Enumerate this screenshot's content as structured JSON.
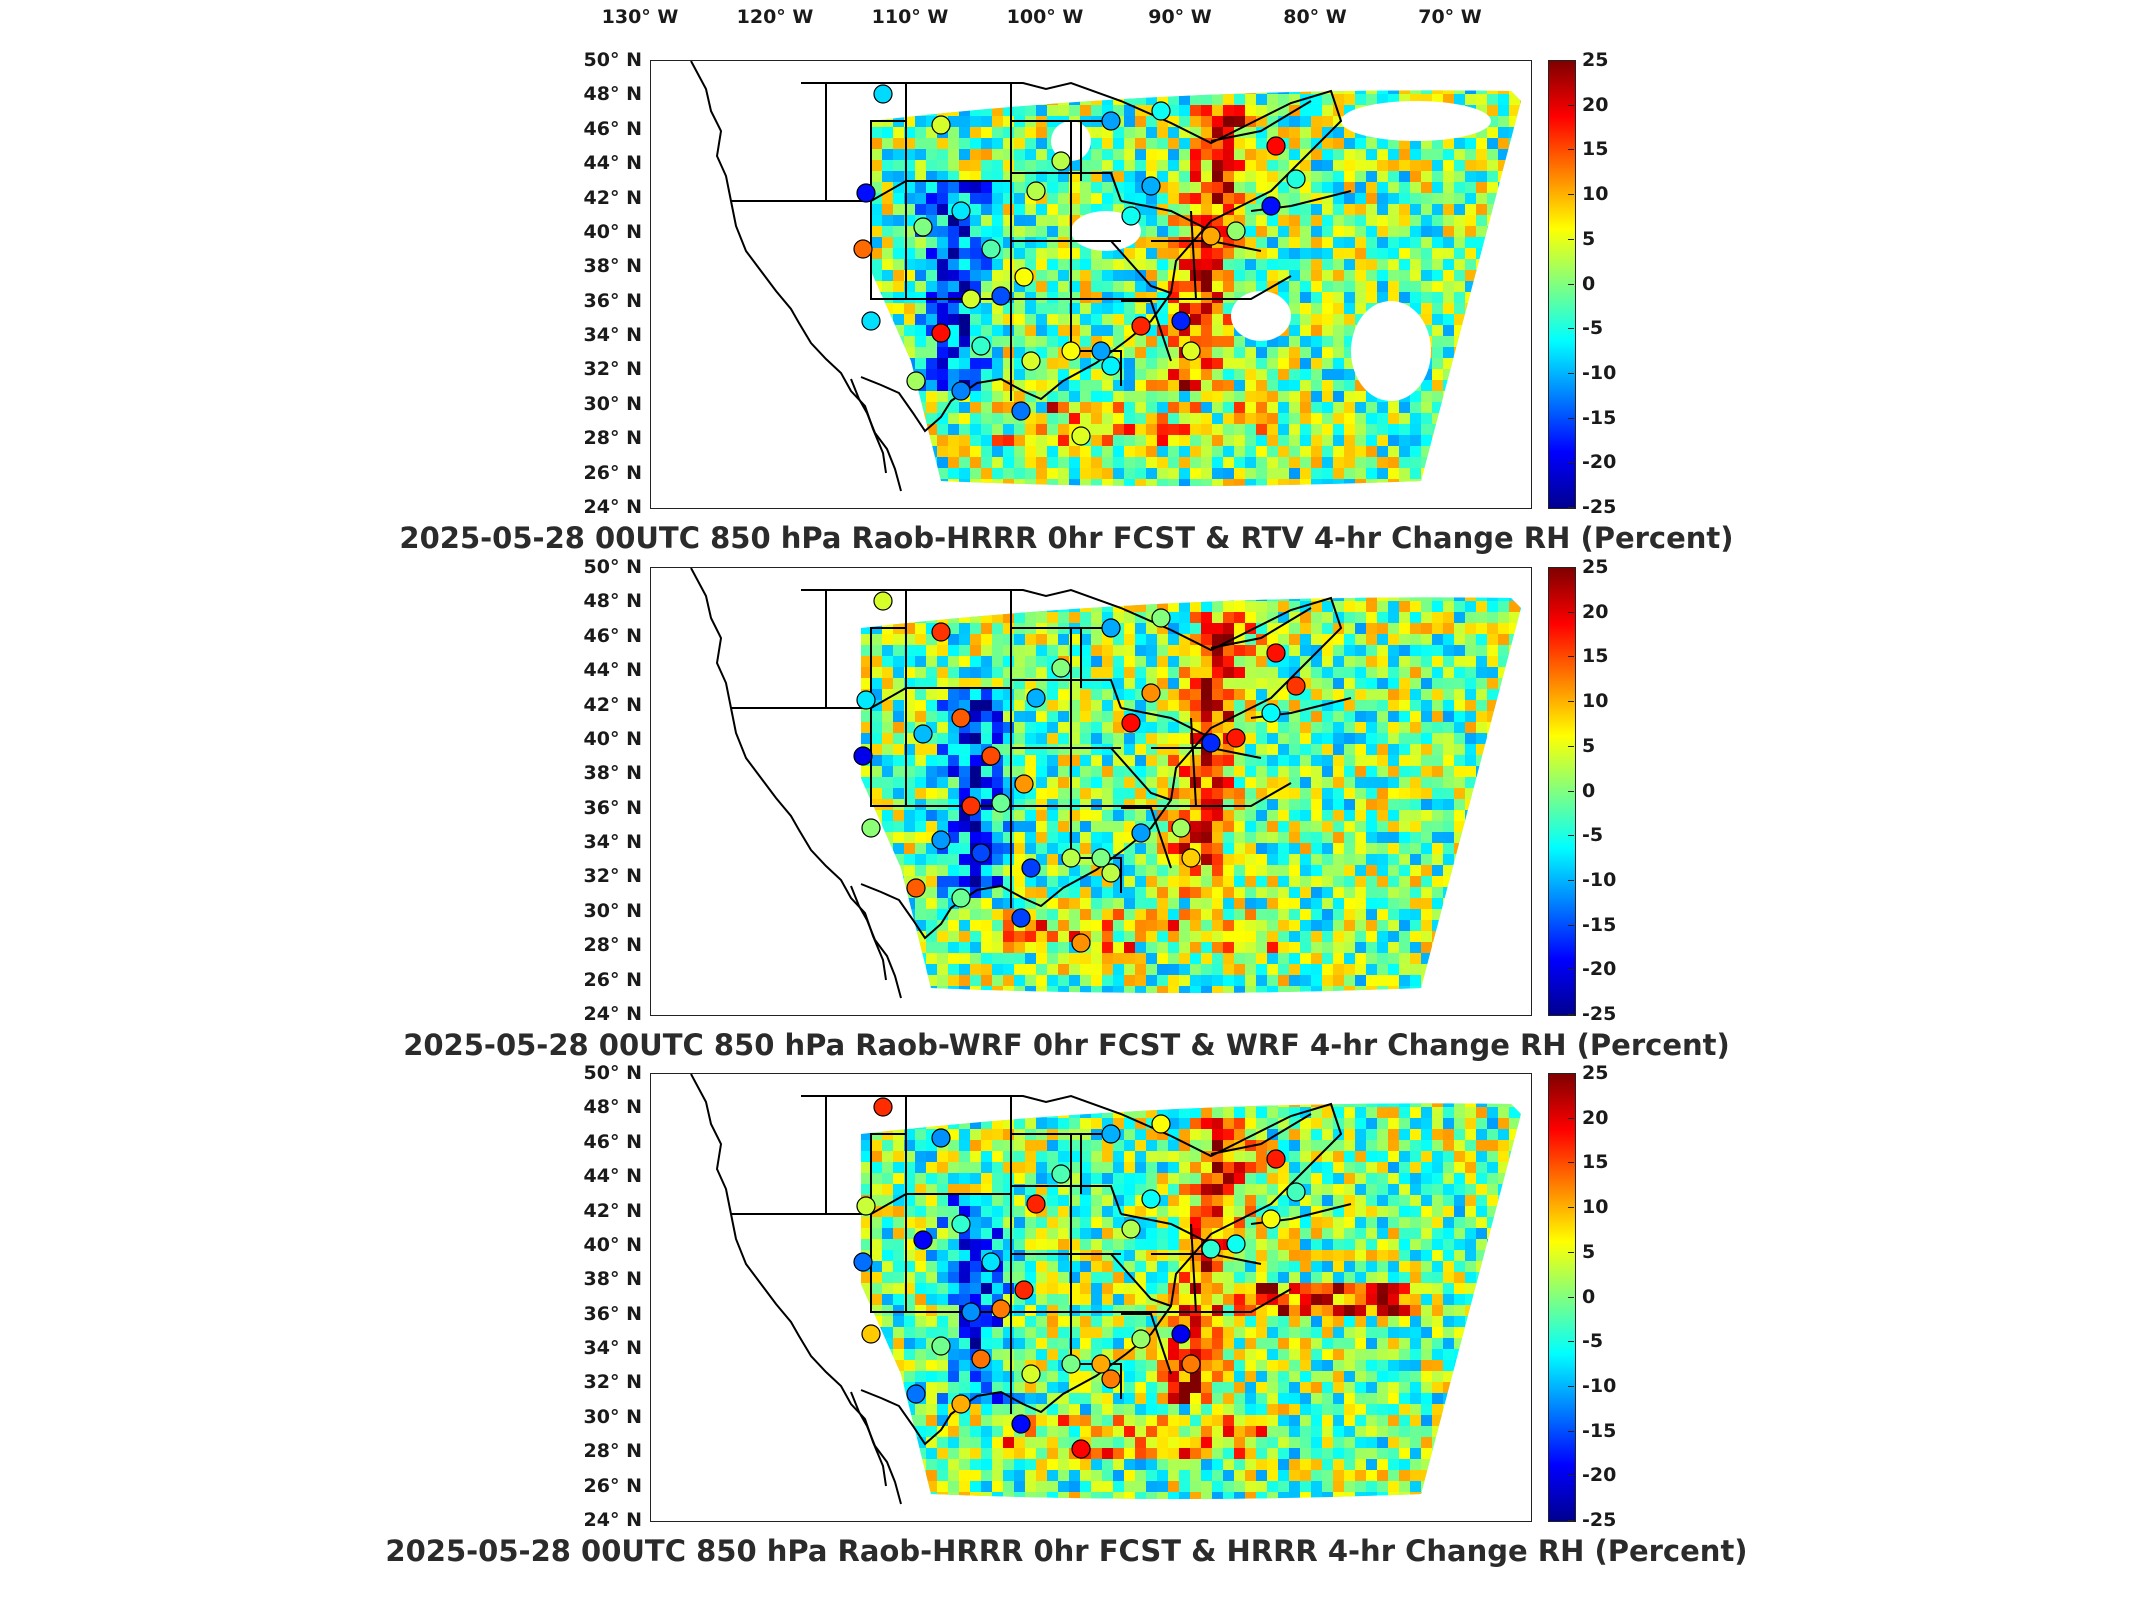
{
  "figure": {
    "lon_labels": [
      "130° W",
      "120° W",
      "110° W",
      "100° W",
      "90° W",
      "80° W",
      "70° W"
    ],
    "lat_labels": [
      "50° N",
      "48° N",
      "46° N",
      "44° N",
      "42° N",
      "40° N",
      "38° N",
      "36° N",
      "34° N",
      "32° N",
      "30° N",
      "28° N",
      "26° N",
      "24° N"
    ],
    "colorbar": {
      "ticks": [
        "25",
        "20",
        "15",
        "10",
        "5",
        "0",
        "-5",
        "-10",
        "-15",
        "-20",
        "-25"
      ],
      "min": -25,
      "max": 25,
      "colormap": "jet",
      "colors": [
        "#00008f",
        "#0000ff",
        "#0080ff",
        "#00ffff",
        "#80ff80",
        "#ffff00",
        "#ff8000",
        "#ff0000",
        "#800000"
      ]
    }
  },
  "panels": [
    {
      "title": "2025-05-28 00UTC 850 hPa Raob-HRRR 0hr FCST & RTV 4-hr Change RH (Percent)"
    },
    {
      "title": "2025-05-28 00UTC 850 hPa Raob-WRF 0hr FCST & WRF 4-hr Change RH (Percent)"
    },
    {
      "title": "2025-05-28 00UTC 850 hPa Raob-HRRR 0hr FCST & HRRR 4-hr Change RH (Percent)"
    }
  ]
}
